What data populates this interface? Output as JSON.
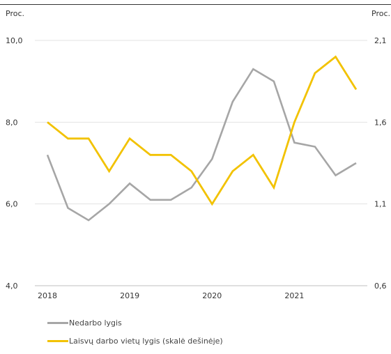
{
  "chart_data": {
    "type": "line",
    "y_left_label": "Proc.",
    "y_right_label": "Proc.",
    "y_left_ticks": [
      "10,0",
      "8,0",
      "6,0",
      "4,0"
    ],
    "y_left_tick_values": [
      10.0,
      8.0,
      6.0,
      4.0
    ],
    "y_right_ticks": [
      "2,1",
      "1,6",
      "1,1",
      "0,6"
    ],
    "y_right_tick_values": [
      2.1,
      1.6,
      1.1,
      0.6
    ],
    "ylim_left": [
      4.0,
      10.0
    ],
    "ylim_right": [
      0.6,
      2.1
    ],
    "x_tick_labels": [
      "2018",
      "2019",
      "2020",
      "2021"
    ],
    "x": [
      2018.0,
      2018.25,
      2018.5,
      2018.75,
      2019.0,
      2019.25,
      2019.5,
      2019.75,
      2020.0,
      2020.25,
      2020.5,
      2020.75,
      2021.0,
      2021.25,
      2021.5,
      2021.75
    ],
    "xlim": [
      2018.0,
      2021.75
    ],
    "grid": "horizontal",
    "legend_position": "bottom-left",
    "series": [
      {
        "name": "Nedarbo lygis",
        "axis": "left",
        "color": "#A6A6A6",
        "values": [
          7.2,
          5.9,
          5.6,
          6.0,
          6.5,
          6.1,
          6.1,
          6.4,
          7.1,
          8.5,
          9.3,
          9.0,
          7.5,
          7.4,
          6.7,
          7.0
        ]
      },
      {
        "name": "Laisvų darbo vietų lygis (skalė dešinėje)",
        "axis": "right",
        "color": "#F2C200",
        "values": [
          1.6,
          1.5,
          1.5,
          1.3,
          1.5,
          1.4,
          1.4,
          1.3,
          1.1,
          1.3,
          1.4,
          1.2,
          1.6,
          1.9,
          2.0,
          1.8
        ]
      }
    ]
  }
}
